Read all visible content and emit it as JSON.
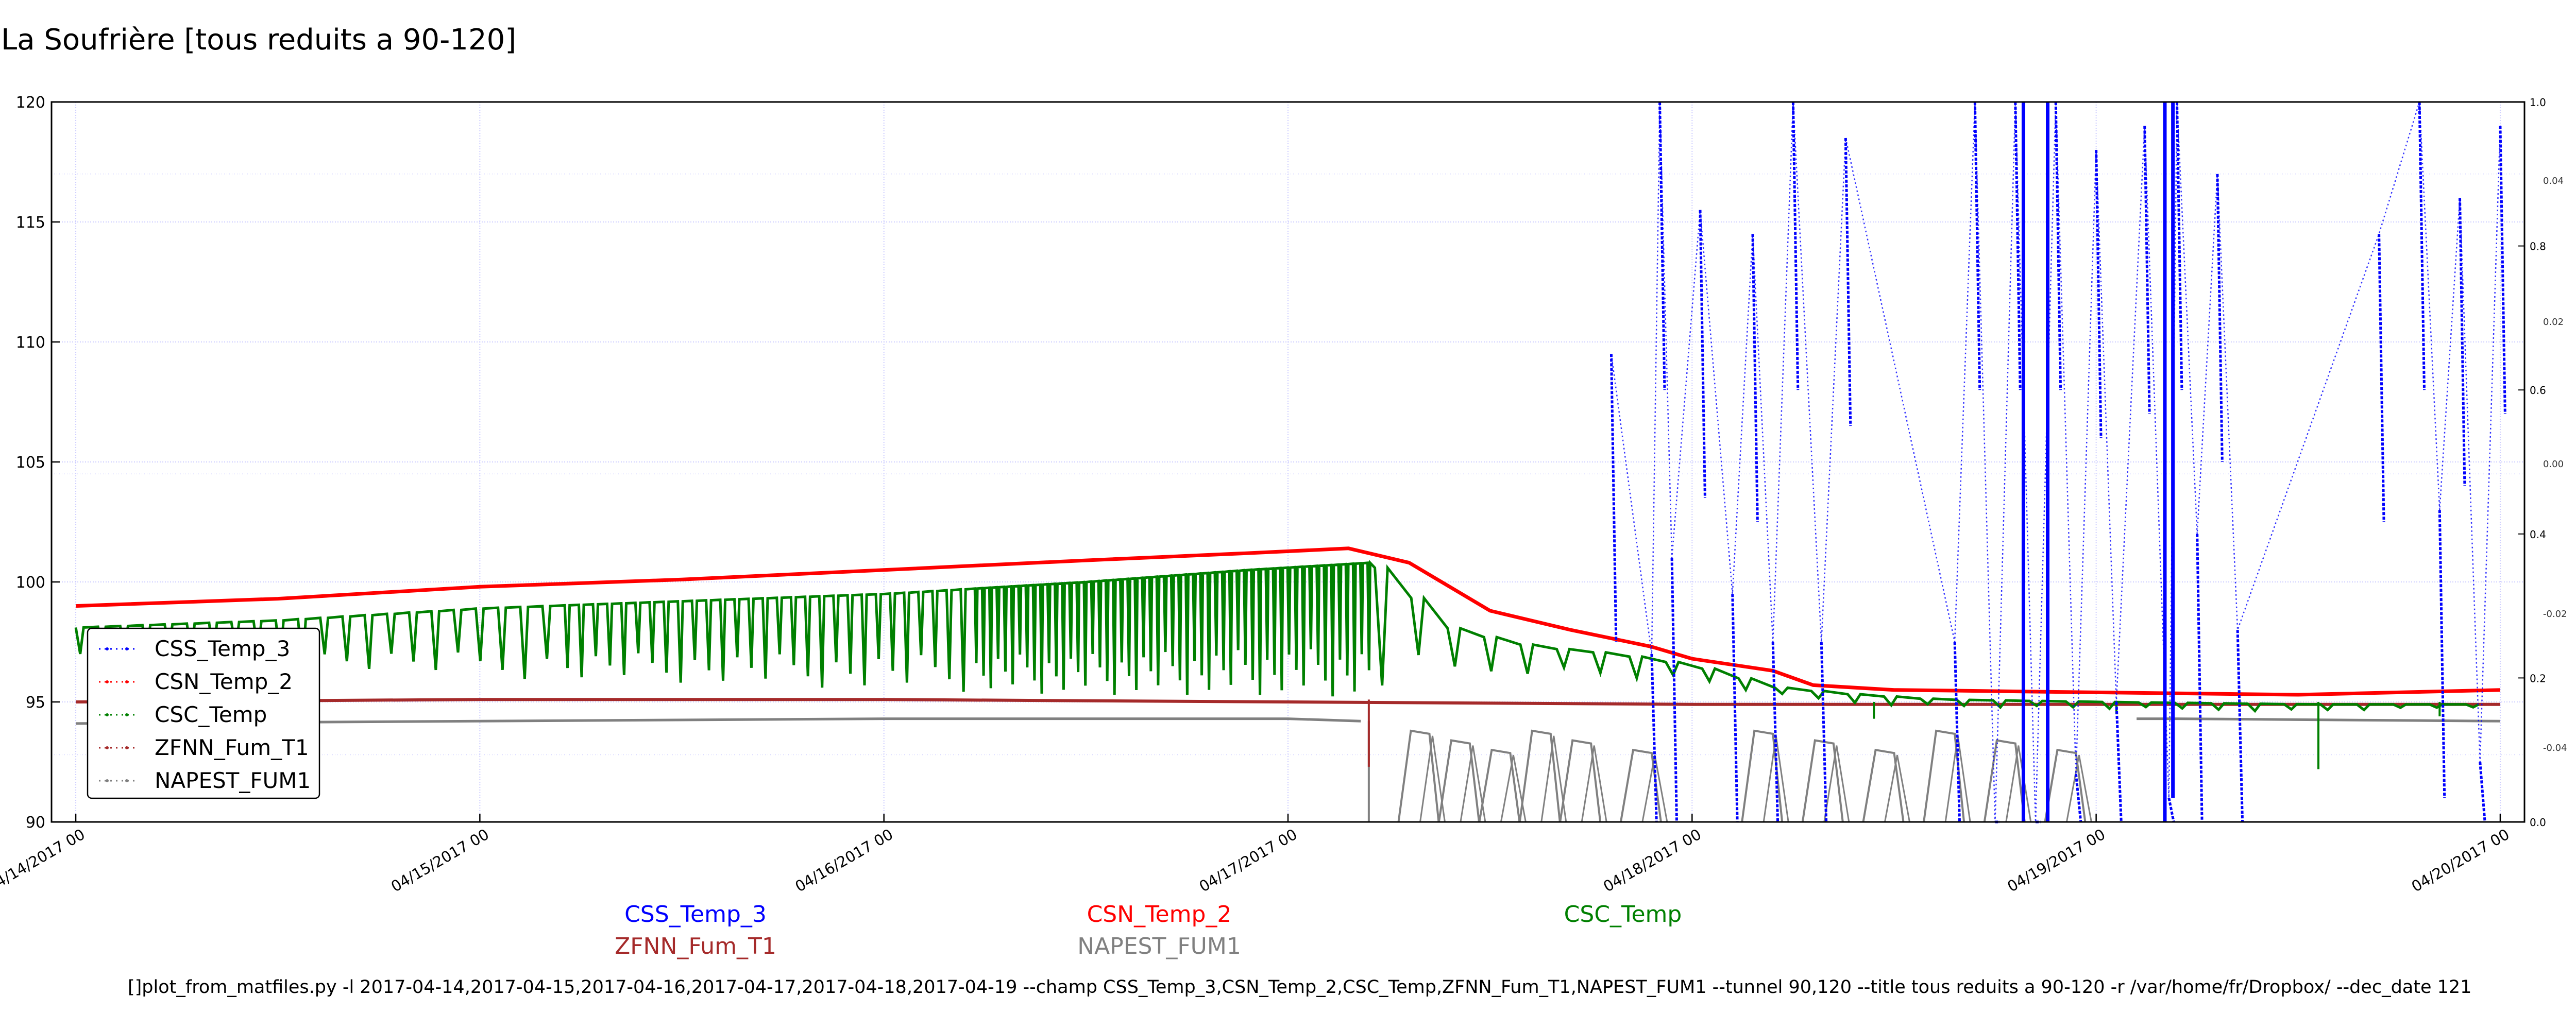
{
  "page": {
    "title": "La Soufrière [tous reduits a 90-120]",
    "command_line": "[]plot_from_matfiles.py -l 2017-04-14,2017-04-15,2017-04-16,2017-04-17,2017-04-18,2017-04-19 --champ CSS_Temp_3,CSN_Temp_2,CSC_Temp,ZFNN_Fum_T1,NAPEST_FUM1 --tunnel 90,120 --title tous reduits a 90-120 -r /var/home/fr/Dropbox/ --dec_date 121"
  },
  "colors": {
    "CSS_Temp_3": "#0000ff",
    "CSN_Temp_2": "#ff0000",
    "CSC_Temp": "#008000",
    "ZFNN_Fum_T1": "#a52a2a",
    "NAPEST_FUM1": "#808080",
    "grid": "#ccccff"
  },
  "chart_data": {
    "type": "line",
    "title": "La Soufrière [tous reduits a 90-120]",
    "xlabel": "",
    "ylabel": "",
    "x_ticks": [
      "04/14/2017 00",
      "04/15/2017 00",
      "04/16/2017 00",
      "04/17/2017 00",
      "04/18/2017 00",
      "04/19/2017 00",
      "04/20/2017 00"
    ],
    "xlim_days": [
      0,
      6.06
    ],
    "ylim": [
      90,
      120
    ],
    "y_ticks": [
      "90",
      "95",
      "100",
      "105",
      "110",
      "115",
      "120"
    ],
    "right_axis_ticks": [
      "0.0",
      "0.2",
      "0.4",
      "0.6",
      "0.8",
      "1.0"
    ],
    "right_inner_ticks": [
      "-0.04",
      "-0.02",
      "0.00",
      "0.02",
      "0.04"
    ],
    "grid": true,
    "legend_position": "lower-left",
    "legend": [
      "CSS_Temp_3",
      "CSN_Temp_2",
      "CSC_Temp",
      "ZFNN_Fum_T1",
      "NAPEST_FUM1"
    ],
    "series_labels_below": [
      {
        "name": "CSS_Temp_3",
        "row": 0,
        "col": 0
      },
      {
        "name": "CSN_Temp_2",
        "row": 0,
        "col": 1
      },
      {
        "name": "CSC_Temp",
        "row": 0,
        "col": 2
      },
      {
        "name": "ZFNN_Fum_T1",
        "row": 1,
        "col": 0
      },
      {
        "name": "NAPEST_FUM1",
        "row": 1,
        "col": 1
      }
    ],
    "series": [
      {
        "name": "CSN_Temp_2",
        "x_days": [
          0,
          0.5,
          1.0,
          1.5,
          2.0,
          2.5,
          2.9,
          3.15,
          3.3,
          3.5,
          3.7,
          3.9,
          4.0,
          4.2,
          4.3,
          4.5,
          5.0,
          5.5,
          6.0
        ],
        "y": [
          99.0,
          99.3,
          99.8,
          100.1,
          100.5,
          100.9,
          101.2,
          101.4,
          100.8,
          98.8,
          98.0,
          97.3,
          96.8,
          96.3,
          95.7,
          95.5,
          95.4,
          95.3,
          95.5
        ]
      },
      {
        "name": "CSC_Temp",
        "x_days": [
          0,
          0.5,
          1.0,
          1.5,
          2.0,
          2.5,
          2.9,
          3.2,
          3.4,
          3.6,
          3.8,
          4.0,
          4.2,
          4.4,
          4.6,
          5.0,
          5.5,
          6.0
        ],
        "upper": [
          98.1,
          98.4,
          98.9,
          99.2,
          99.5,
          100.0,
          100.5,
          100.8,
          98.0,
          97.3,
          97.0,
          96.5,
          95.6,
          95.3,
          95.1,
          95.0,
          94.9,
          94.9
        ],
        "lower": [
          97.0,
          96.5,
          96.0,
          95.8,
          95.5,
          95.3,
          95.3,
          95.2,
          96.0,
          96.2,
          96.0,
          95.8,
          95.2,
          94.9,
          94.8,
          94.7,
          94.6,
          94.8
        ]
      },
      {
        "name": "ZFNN_Fum_T1",
        "x_days": [
          0,
          1.0,
          2.0,
          3.0,
          4.0,
          5.0,
          6.0
        ],
        "y": [
          95.0,
          95.1,
          95.1,
          95.0,
          94.9,
          94.9,
          94.9
        ]
      },
      {
        "name": "NAPEST_FUM1",
        "x_days": [
          0,
          1.0,
          2.0,
          3.0,
          3.18,
          3.22,
          4.0,
          5.0,
          5.1,
          5.2,
          6.0
        ],
        "y": [
          94.1,
          94.2,
          94.3,
          94.3,
          94.2,
          90.0,
          90.0,
          90.0,
          94.3,
          94.3,
          94.2
        ],
        "excursions_x_days": [
          3.35,
          3.45,
          3.55,
          3.65,
          3.75,
          3.9,
          4.2,
          4.35,
          4.5,
          4.65,
          4.8,
          4.95
        ]
      },
      {
        "name": "CSS_Temp_3",
        "x_days": [
          3.8,
          3.9,
          3.92,
          3.95,
          4.02,
          4.1,
          4.15,
          4.2,
          4.25,
          4.32,
          4.38,
          4.65,
          4.7,
          4.75,
          4.8,
          4.85,
          4.9,
          4.95,
          5.0,
          5.05,
          5.12,
          5.18,
          5.2,
          5.25,
          5.3,
          5.35,
          5.7,
          5.8,
          5.85,
          5.9,
          5.95,
          6.0
        ],
        "y": [
          109.5,
          97.0,
          120.0,
          101.0,
          115.5,
          99.5,
          114.5,
          97.5,
          120.0,
          97.5,
          118.5,
          97.5,
          120.0,
          90.0,
          120.0,
          90.0,
          120.0,
          92.0,
          118.0,
          95.0,
          119.0,
          91.0,
          120.0,
          102.0,
          117.0,
          98.0,
          114.5,
          120.0,
          103.0,
          116.0,
          92.5,
          119.0
        ]
      }
    ]
  }
}
